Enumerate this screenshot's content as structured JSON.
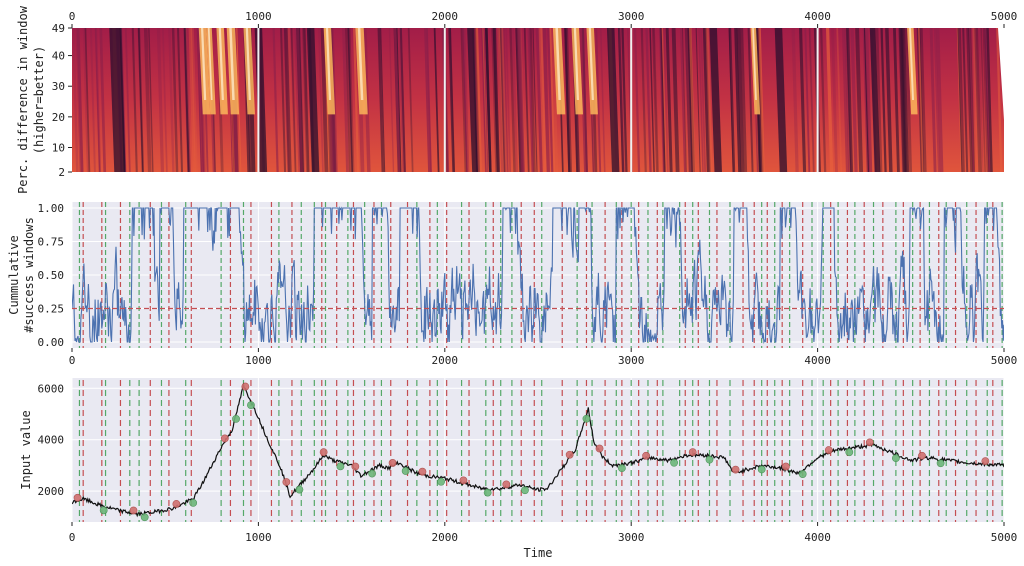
{
  "colors": {
    "axes_bg": "#e9e9f2",
    "grid": "#ffffff",
    "ratio_line": "#4c72b0",
    "threshold": "#c44e52",
    "buy": "#55a868",
    "sell": "#c44e52",
    "price_line": "#111111",
    "heat_low": "#2b0f2e",
    "heat_mid": "#b3254a",
    "heat_high": "#fbb65a"
  },
  "chart_data": [
    {
      "type": "heatmap",
      "ylabel": "Perc. difference in window\n(higher=better)",
      "x_ticks": [
        "0",
        "1000",
        "2000",
        "3000",
        "4000",
        "5000"
      ],
      "x_ticks_position": "top",
      "y_ticks": [
        "49",
        "40",
        "30",
        "20",
        "10",
        "2"
      ],
      "xlim": [
        0,
        5000
      ],
      "ylim": [
        2,
        49
      ],
      "vertical_markers": [
        1000,
        2000,
        3000,
        4000
      ],
      "colormap": "rocket",
      "bright_bands": [
        {
          "x": 680,
          "w": 40
        },
        {
          "x": 720,
          "w": 30
        },
        {
          "x": 775,
          "w": 40
        },
        {
          "x": 830,
          "w": 45
        },
        {
          "x": 920,
          "w": 40
        },
        {
          "x": 1350,
          "w": 40
        },
        {
          "x": 1520,
          "w": 45
        },
        {
          "x": 2580,
          "w": 45
        },
        {
          "x": 2680,
          "w": 40
        },
        {
          "x": 2760,
          "w": 40
        },
        {
          "x": 3640,
          "w": 30
        },
        {
          "x": 4480,
          "w": 35
        }
      ],
      "dark_bands": [
        {
          "x": 200,
          "w": 60
        },
        {
          "x": 980,
          "w": 40
        },
        {
          "x": 1260,
          "w": 40
        },
        {
          "x": 2120,
          "w": 30
        },
        {
          "x": 2870,
          "w": 40
        },
        {
          "x": 3420,
          "w": 40
        },
        {
          "x": 3770,
          "w": 40
        },
        {
          "x": 4280,
          "w": 30
        }
      ]
    },
    {
      "type": "line",
      "ylabel": "Cummulative\n#success windows",
      "x_ticks": [
        "0",
        "1000",
        "2000",
        "3000",
        "4000",
        "5000"
      ],
      "y_ticks": [
        "1.00",
        "0.75",
        "0.50",
        "0.25",
        "0.00"
      ],
      "xlim": [
        0,
        5000
      ],
      "ylim": [
        0,
        1
      ],
      "threshold": 0.25,
      "high_regimes": [
        [
          320,
          440
        ],
        [
          470,
          540
        ],
        [
          600,
          900
        ],
        [
          1300,
          1560
        ],
        [
          1610,
          1690
        ],
        [
          1760,
          1860
        ],
        [
          2310,
          2390
        ],
        [
          2570,
          2780
        ],
        [
          2920,
          3020
        ],
        [
          3180,
          3260
        ],
        [
          3550,
          3620
        ],
        [
          3800,
          3880
        ],
        [
          4020,
          4090
        ],
        [
          4490,
          4570
        ],
        [
          4680,
          4770
        ],
        [
          4890,
          4960
        ]
      ],
      "buy_signals": [
        40,
        180,
        310,
        360,
        480,
        610,
        800,
        920,
        1110,
        1230,
        1300,
        1360,
        1480,
        1570,
        1660,
        1850,
        1960,
        2090,
        2220,
        2300,
        2360,
        2520,
        2710,
        2790,
        2920,
        3000,
        3090,
        3170,
        3260,
        3330,
        3420,
        3530,
        3700,
        3770,
        3850,
        3970,
        4030,
        4110,
        4200,
        4300,
        4420,
        4510,
        4600,
        4690,
        4800,
        4910,
        4990
      ],
      "sell_signals": [
        60,
        160,
        260,
        420,
        520,
        640,
        850,
        960,
        1070,
        1180,
        1340,
        1420,
        1510,
        1620,
        1710,
        1800,
        1920,
        2010,
        2130,
        2260,
        2410,
        2480,
        2630,
        2760,
        2860,
        2950,
        3040,
        3140,
        3290,
        3360,
        3460,
        3600,
        3660,
        3730,
        3810,
        3920,
        4070,
        4160,
        4250,
        4350,
        4460,
        4550,
        4650,
        4740,
        4850,
        4940
      ]
    },
    {
      "type": "line",
      "xlabel": "Time",
      "ylabel": "Input value",
      "x_ticks": [
        "0",
        "1000",
        "2000",
        "3000",
        "4000",
        "5000"
      ],
      "y_ticks": [
        "6000",
        "4000",
        "2000"
      ],
      "xlim": [
        0,
        5000
      ],
      "ylim": [
        800,
        6400
      ],
      "price_anchors": [
        [
          0,
          1550
        ],
        [
          60,
          1700
        ],
        [
          150,
          1450
        ],
        [
          250,
          1250
        ],
        [
          350,
          1100
        ],
        [
          450,
          1200
        ],
        [
          550,
          1350
        ],
        [
          650,
          1700
        ],
        [
          700,
          2300
        ],
        [
          750,
          3000
        ],
        [
          800,
          3700
        ],
        [
          860,
          4400
        ],
        [
          920,
          6100
        ],
        [
          980,
          5200
        ],
        [
          1050,
          4000
        ],
        [
          1120,
          2900
        ],
        [
          1170,
          1800
        ],
        [
          1230,
          2300
        ],
        [
          1300,
          2900
        ],
        [
          1350,
          3400
        ],
        [
          1400,
          3200
        ],
        [
          1450,
          3100
        ],
        [
          1500,
          3000
        ],
        [
          1550,
          2600
        ],
        [
          1600,
          2800
        ],
        [
          1650,
          3000
        ],
        [
          1700,
          2900
        ],
        [
          1750,
          3100
        ],
        [
          1800,
          2900
        ],
        [
          1850,
          2700
        ],
        [
          1900,
          2600
        ],
        [
          2000,
          2500
        ],
        [
          2100,
          2300
        ],
        [
          2200,
          2100
        ],
        [
          2300,
          2100
        ],
        [
          2400,
          2250
        ],
        [
          2500,
          2050
        ],
        [
          2550,
          2100
        ],
        [
          2600,
          2600
        ],
        [
          2700,
          3600
        ],
        [
          2770,
          5200
        ],
        [
          2800,
          3900
        ],
        [
          2850,
          3300
        ],
        [
          2900,
          3000
        ],
        [
          3000,
          3100
        ],
        [
          3100,
          3300
        ],
        [
          3200,
          3200
        ],
        [
          3300,
          3400
        ],
        [
          3400,
          3400
        ],
        [
          3500,
          3300
        ],
        [
          3550,
          2700
        ],
        [
          3600,
          2800
        ],
        [
          3700,
          3000
        ],
        [
          3800,
          2900
        ],
        [
          3900,
          2700
        ],
        [
          4000,
          3300
        ],
        [
          4100,
          3600
        ],
        [
          4200,
          3700
        ],
        [
          4300,
          3800
        ],
        [
          4400,
          3500
        ],
        [
          4500,
          3200
        ],
        [
          4600,
          3300
        ],
        [
          4700,
          3200
        ],
        [
          4800,
          3100
        ],
        [
          4900,
          3050
        ],
        [
          5000,
          3000
        ]
      ],
      "marker_points": [
        30,
        170,
        330,
        390,
        560,
        650,
        820,
        880,
        930,
        960,
        1150,
        1220,
        1350,
        1440,
        1520,
        1610,
        1720,
        1790,
        1880,
        1980,
        2100,
        2230,
        2330,
        2430,
        2670,
        2760,
        2830,
        2950,
        3080,
        3230,
        3330,
        3420,
        3560,
        3700,
        3830,
        3920,
        4060,
        4170,
        4280,
        4420,
        4560,
        4660,
        4900
      ]
    }
  ]
}
